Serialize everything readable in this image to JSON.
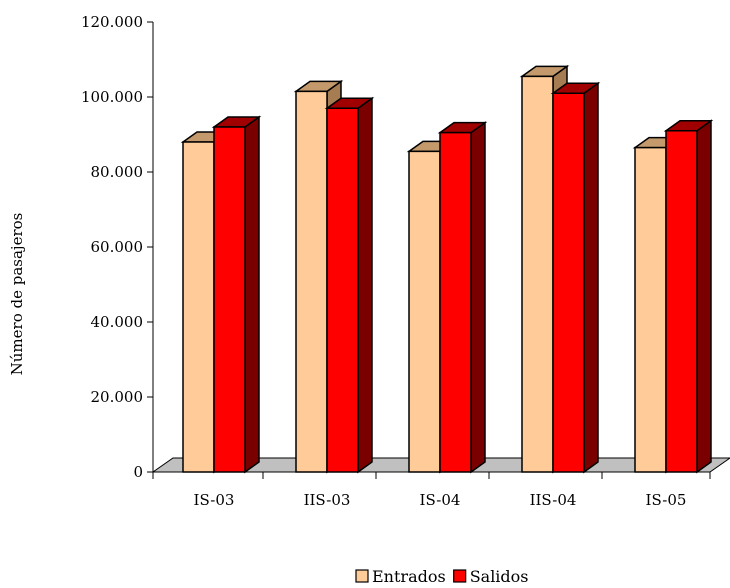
{
  "chart_data": {
    "type": "bar",
    "variant": "3d-clustered",
    "categories": [
      "IS-03",
      "IIS-03",
      "IS-04",
      "IIS-04",
      "IS-05"
    ],
    "series": [
      {
        "name": "Entrados",
        "values": [
          88000,
          101500,
          85500,
          105500,
          86500
        ],
        "color": "#FFCC99"
      },
      {
        "name": "Salidos",
        "values": [
          92000,
          97000,
          90500,
          101000,
          91000
        ],
        "color": "#FF0000"
      }
    ],
    "ylabel": "Número de pasajeros",
    "ylim": [
      0,
      120000
    ],
    "ytick_labels": [
      "0",
      "20.000",
      "40.000",
      "60.000",
      "80.000",
      "100.000",
      "120.000"
    ],
    "grid": false,
    "legend_position": "bottom-center",
    "floor_color": "#C0C0C0"
  }
}
